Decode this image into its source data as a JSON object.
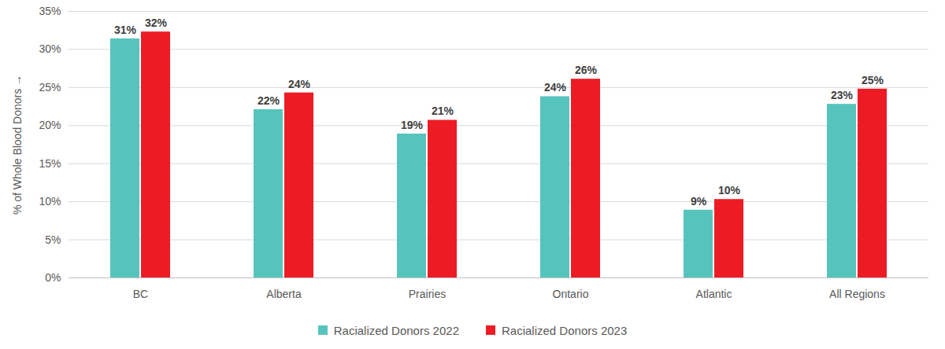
{
  "chart_data": {
    "type": "bar",
    "y_label": "% of Whole Blood Donors",
    "categories": [
      "BC",
      "Alberta",
      "Prairies",
      "Ontario",
      "Atlantic",
      "All Regions"
    ],
    "series": [
      {
        "name": "Racialized Donors 2022",
        "color": "#56c4bd",
        "values": [
          31.4,
          22.1,
          18.9,
          23.8,
          8.9,
          22.8
        ],
        "value_labels": [
          "31%",
          "22%",
          "19%",
          "24%",
          "9%",
          "23%"
        ]
      },
      {
        "name": "Racialized Donors 2023",
        "color": "#ed1c24",
        "values": [
          32.3,
          24.3,
          20.7,
          26.1,
          10.3,
          24.8
        ],
        "value_labels": [
          "32%",
          "24%",
          "21%",
          "26%",
          "10%",
          "25%"
        ]
      }
    ],
    "ylim": [
      0,
      35
    ],
    "yticks": [
      {
        "value": 0,
        "label": "0%"
      },
      {
        "value": 5,
        "label": "5%"
      },
      {
        "value": 10,
        "label": "10%"
      },
      {
        "value": 15,
        "label": "15%"
      },
      {
        "value": 20,
        "label": "20%"
      },
      {
        "value": 25,
        "label": "25%"
      },
      {
        "value": 30,
        "label": "30%"
      },
      {
        "value": 35,
        "label": "35%"
      }
    ],
    "grid": true,
    "data_labels": true,
    "legend": "bottom"
  }
}
